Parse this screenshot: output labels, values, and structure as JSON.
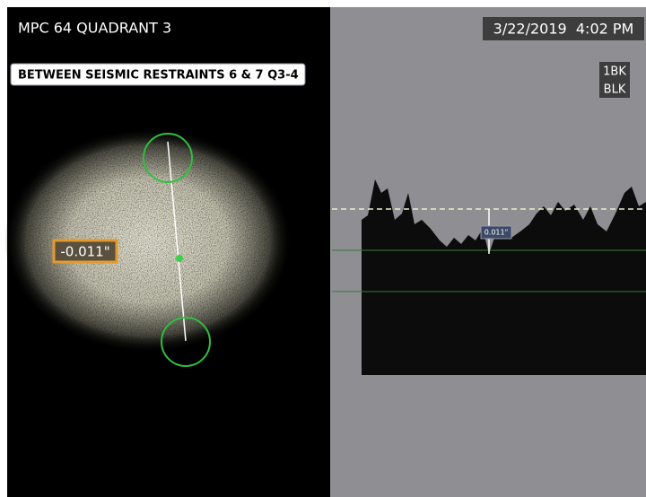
{
  "header": {
    "title": "MPC 64 QUADRANT 3",
    "datetime": "3/22/2019  4:02 PM",
    "tags": [
      "1BK",
      "BLK"
    ]
  },
  "annotation": "BETWEEN SEISMIC RESTRAINTS 6 & 7 Q3-4",
  "measurement": "-0.011\"",
  "profile": {
    "depth_label": "0.011\""
  }
}
